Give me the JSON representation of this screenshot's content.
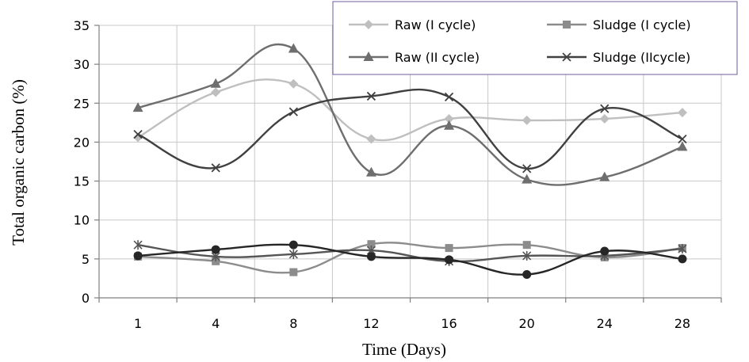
{
  "chart_data": {
    "type": "line",
    "xlabel": "Time (Days)",
    "ylabel": "Total organic carbon  (%)",
    "categories": [
      "1",
      "4",
      "8",
      "12",
      "16",
      "20",
      "24",
      "28"
    ],
    "ylim": [
      0,
      35
    ],
    "yticks": [
      0,
      5,
      10,
      15,
      20,
      25,
      30,
      35
    ],
    "grid": true,
    "smooth": true,
    "legend_position": "top-right",
    "series": [
      {
        "name": "Raw (I cycle)",
        "values": [
          20.6,
          26.4,
          27.5,
          20.4,
          23.0,
          22.8,
          23.0,
          23.8
        ],
        "color": "#bfbfbf",
        "marker": "diamond"
      },
      {
        "name": "Sludge (I cycle)",
        "values": [
          5.3,
          4.7,
          3.3,
          6.9,
          6.4,
          6.8,
          5.2,
          6.4
        ],
        "color": "#8c8c8c",
        "marker": "square"
      },
      {
        "name": "Raw (II cycle)",
        "values": [
          24.4,
          27.5,
          32.0,
          16.1,
          22.1,
          15.2,
          15.5,
          19.4
        ],
        "color": "#6e6e6e",
        "marker": "triangle"
      },
      {
        "name": "Sludge (IIcycle)",
        "values": [
          21.0,
          16.7,
          23.9,
          25.9,
          25.8,
          16.6,
          24.3,
          20.4
        ],
        "color": "#404040",
        "marker": "x"
      },
      {
        "name": "",
        "values": [
          6.8,
          5.3,
          5.6,
          6.1,
          4.7,
          5.4,
          5.4,
          6.3
        ],
        "color": "#555555",
        "marker": "star",
        "show_in_legend": false
      },
      {
        "name": "",
        "values": [
          5.4,
          6.2,
          6.8,
          5.3,
          4.9,
          3.0,
          6.0,
          5.0
        ],
        "color": "#262626",
        "marker": "circle",
        "show_in_legend": false
      }
    ]
  }
}
